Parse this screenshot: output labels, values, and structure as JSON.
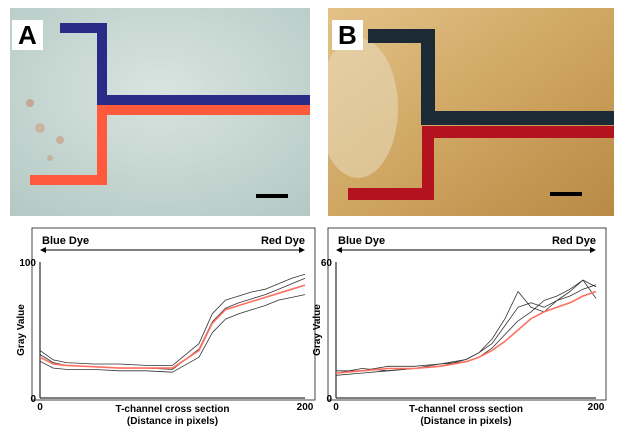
{
  "panels": [
    {
      "letter": "A",
      "photo": {
        "background": "#c9d8d4",
        "blue_dye_color": "#2a2b86",
        "red_dye_color": "#ff5a3c",
        "scale_bar_color": "#000000"
      }
    },
    {
      "letter": "B",
      "photo": {
        "background": "#cfa662",
        "blue_dye_color": "#1b2a35",
        "red_dye_color": "#b3121f",
        "scale_bar_color": "#000000"
      }
    }
  ],
  "chart_data": [
    {
      "type": "line",
      "title": "",
      "xlabel": "T-channel cross section\n(Distance in pixels)",
      "ylabel": "Gray Value",
      "xlim": [
        0,
        200
      ],
      "ylim": [
        0,
        100
      ],
      "x_ticks": [
        "0",
        "200"
      ],
      "y_ticks": [
        "0",
        "100"
      ],
      "arrow_left_label": "Blue Dye",
      "arrow_right_label": "Red Dye",
      "x": [
        0,
        10,
        20,
        40,
        60,
        80,
        100,
        120,
        130,
        140,
        150,
        160,
        170,
        180,
        190,
        200
      ],
      "series": [
        {
          "color": "#ff6f61",
          "values": [
            30,
            25,
            24,
            23,
            22,
            22,
            22,
            35,
            55,
            65,
            68,
            71,
            74,
            77,
            80,
            83
          ]
        },
        {
          "color": "#333333",
          "values": [
            35,
            28,
            26,
            25,
            25,
            24,
            24,
            40,
            62,
            72,
            75,
            78,
            80,
            84,
            88,
            91
          ]
        },
        {
          "color": "#333333",
          "values": [
            27,
            22,
            21,
            21,
            20,
            20,
            19,
            30,
            48,
            58,
            62,
            65,
            68,
            72,
            74,
            76
          ]
        },
        {
          "color": "#333333",
          "values": [
            32,
            26,
            24,
            23,
            22,
            22,
            21,
            36,
            56,
            66,
            70,
            73,
            76,
            80,
            84,
            88
          ]
        }
      ]
    },
    {
      "type": "line",
      "title": "",
      "xlabel": "T-channel cross section\n(Distance in pixels)",
      "ylabel": "Gray Value",
      "xlim": [
        0,
        200
      ],
      "ylim": [
        0,
        60
      ],
      "x_ticks": [
        "0",
        "200"
      ],
      "y_ticks": [
        "0",
        "60"
      ],
      "arrow_left_label": "Blue Dye",
      "arrow_right_label": "Red Dye",
      "x": [
        0,
        20,
        40,
        60,
        80,
        100,
        110,
        120,
        130,
        140,
        150,
        160,
        170,
        180,
        190,
        200
      ],
      "series": [
        {
          "color": "#ff6f61",
          "values": [
            11,
            12,
            13,
            13,
            14,
            16,
            18,
            21,
            25,
            30,
            35,
            38,
            40,
            42,
            45,
            47
          ]
        },
        {
          "color": "#333333",
          "values": [
            11,
            13,
            12,
            13,
            14,
            17,
            20,
            24,
            32,
            40,
            42,
            40,
            43,
            47,
            52,
            44
          ]
        },
        {
          "color": "#333333",
          "values": [
            10,
            11,
            12,
            13,
            15,
            17,
            20,
            26,
            35,
            47,
            40,
            38,
            43,
            45,
            48,
            50
          ]
        },
        {
          "color": "#333333",
          "values": [
            12,
            12,
            14,
            14,
            15,
            16,
            18,
            22,
            28,
            34,
            38,
            43,
            45,
            48,
            52,
            49
          ]
        }
      ]
    }
  ]
}
